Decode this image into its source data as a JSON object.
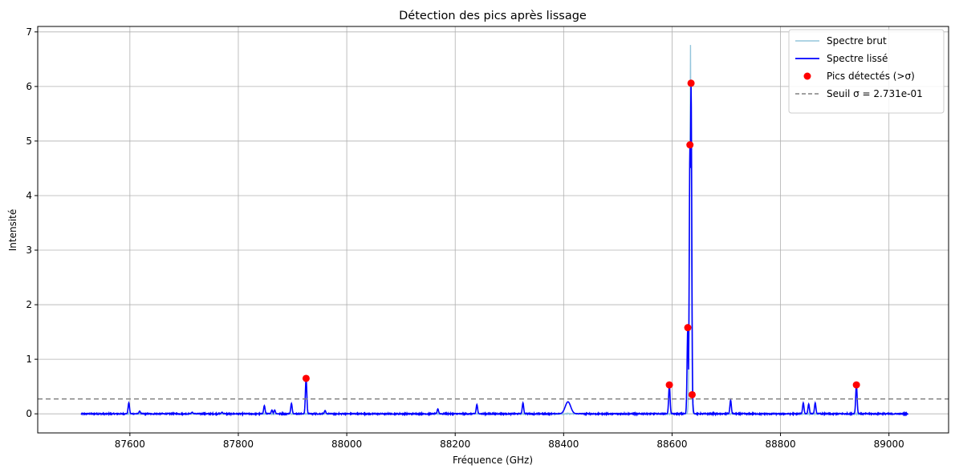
{
  "chart_data": {
    "type": "line",
    "title": "Détection des pics après lissage",
    "xlabel": "Fréquence (GHz)",
    "ylabel": "Intensité",
    "xlim": [
      87430,
      89110
    ],
    "ylim": [
      -0.35,
      7.1
    ],
    "x_ticks": [
      87600,
      87800,
      88000,
      88200,
      88400,
      88600,
      88800,
      89000
    ],
    "y_ticks": [
      0,
      1,
      2,
      3,
      4,
      5,
      6,
      7
    ],
    "grid": true,
    "legend_position": "top-right",
    "x_range": [
      87510,
      89035
    ],
    "series": [
      {
        "name": "Spectre brut",
        "color": "#94c5dc",
        "features": [
          {
            "x": 88630,
            "y": 0.2
          },
          {
            "x": 88631,
            "y": 0.9
          },
          {
            "x": 88632,
            "y": 3.0
          },
          {
            "x": 88633,
            "y": 5.0
          },
          {
            "x": 88634,
            "y": 6.76
          },
          {
            "x": 88635,
            "y": 6.0
          },
          {
            "x": 88636,
            "y": 2.0
          },
          {
            "x": 88637,
            "y": 0.3
          }
        ]
      },
      {
        "name": "Spectre lissé",
        "color": "#0000ff",
        "features": [
          {
            "x": 87598,
            "y": 0.2
          },
          {
            "x": 87618,
            "y": 0.05
          },
          {
            "x": 87715,
            "y": 0.03
          },
          {
            "x": 87770,
            "y": 0.03
          },
          {
            "x": 87848,
            "y": 0.15
          },
          {
            "x": 87862,
            "y": 0.07
          },
          {
            "x": 87867,
            "y": 0.07
          },
          {
            "x": 87898,
            "y": 0.19
          },
          {
            "x": 87925,
            "y": 0.65
          },
          {
            "x": 87960,
            "y": 0.06
          },
          {
            "x": 88168,
            "y": 0.09
          },
          {
            "x": 88240,
            "y": 0.17
          },
          {
            "x": 88325,
            "y": 0.2
          },
          {
            "x": 88408,
            "y": 0.22
          },
          {
            "x": 88595,
            "y": 0.53
          },
          {
            "x": 88629,
            "y": 1.58
          },
          {
            "x": 88633,
            "y": 4.93
          },
          {
            "x": 88635,
            "y": 6.06
          },
          {
            "x": 88637,
            "y": 0.35
          },
          {
            "x": 88708,
            "y": 0.25
          },
          {
            "x": 88842,
            "y": 0.2
          },
          {
            "x": 88852,
            "y": 0.18
          },
          {
            "x": 88864,
            "y": 0.2
          },
          {
            "x": 88940,
            "y": 0.53
          }
        ]
      }
    ],
    "peaks": {
      "name": "Pics détectés (>σ)",
      "color": "#ff0000",
      "points": [
        {
          "x": 87925,
          "y": 0.65
        },
        {
          "x": 88595,
          "y": 0.53
        },
        {
          "x": 88629,
          "y": 1.58
        },
        {
          "x": 88633,
          "y": 4.93
        },
        {
          "x": 88635,
          "y": 6.06
        },
        {
          "x": 88637,
          "y": 0.35
        },
        {
          "x": 88940,
          "y": 0.53
        }
      ]
    },
    "threshold": {
      "name": "Seuil σ = 2.731e-01",
      "value": 0.2731,
      "color": "#808080"
    }
  }
}
